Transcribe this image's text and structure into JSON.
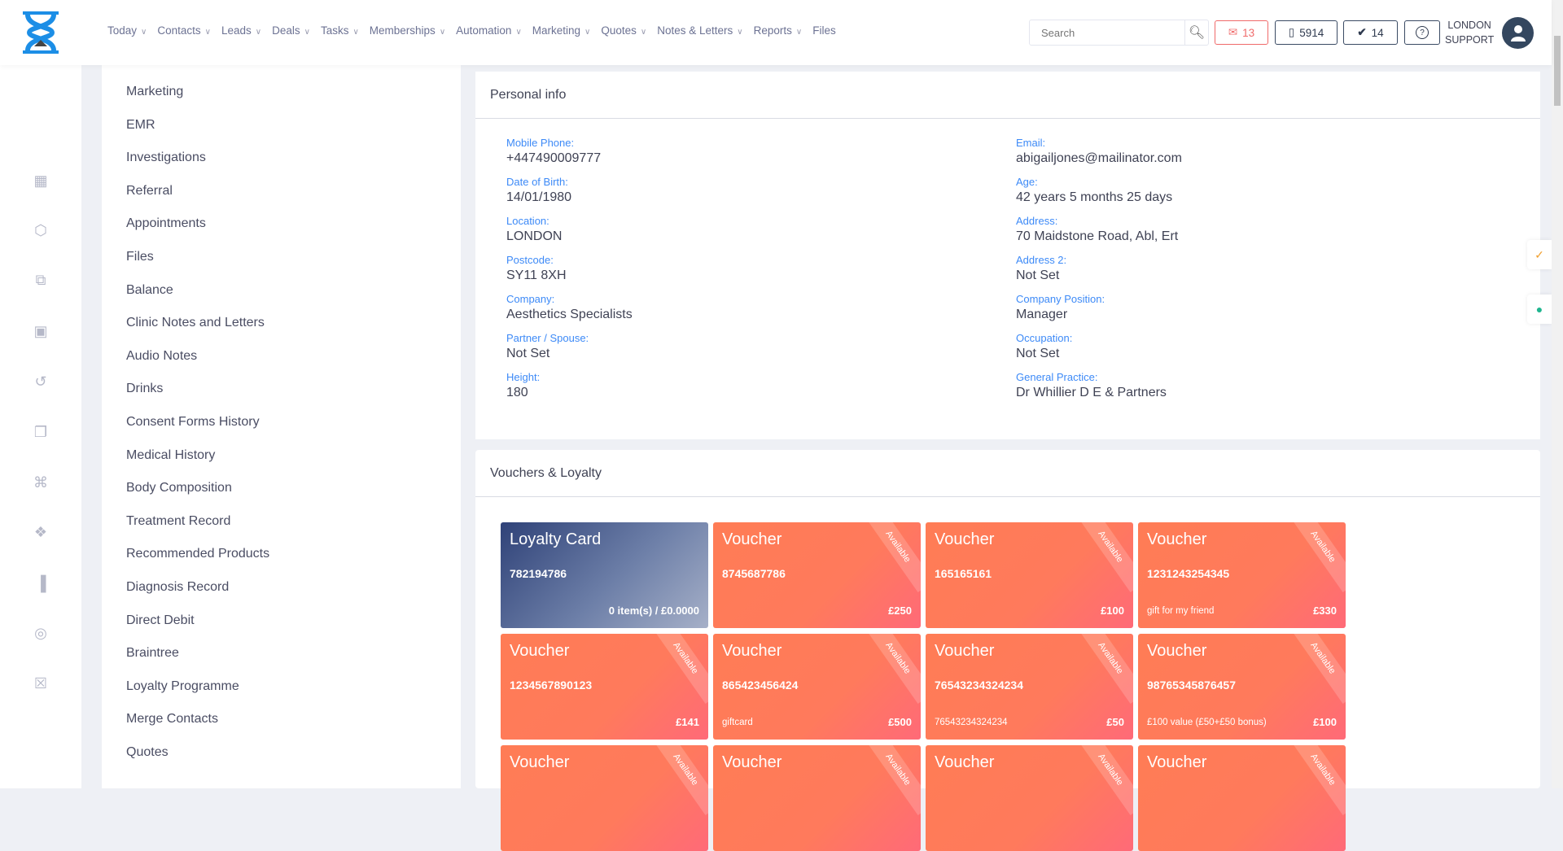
{
  "nav": {
    "items": [
      {
        "label": "Today",
        "dropdown": true
      },
      {
        "label": "Contacts",
        "dropdown": true
      },
      {
        "label": "Leads",
        "dropdown": true
      },
      {
        "label": "Deals",
        "dropdown": true
      },
      {
        "label": "Tasks",
        "dropdown": true
      },
      {
        "label": "Memberships",
        "dropdown": true
      },
      {
        "label": "Automation",
        "dropdown": true
      },
      {
        "label": "Marketing",
        "dropdown": true
      },
      {
        "label": "Quotes",
        "dropdown": true
      },
      {
        "label": "Notes & Letters",
        "dropdown": true
      },
      {
        "label": "Reports",
        "dropdown": true
      },
      {
        "label": "Files",
        "dropdown": false
      }
    ],
    "search_placeholder": "Search",
    "mail_count": "13",
    "sms_count": "5914",
    "tasks_count": "14",
    "user_line1": "LONDON",
    "user_line2": "SUPPORT",
    "mail_color": "#f06a6a"
  },
  "rail": {
    "icons": [
      "calendar-icon",
      "box-icon",
      "copy-icon",
      "camera-icon",
      "history-icon",
      "gift-icon",
      "cart-icon",
      "tag-icon",
      "report-icon",
      "account-icon",
      "lock-icon"
    ]
  },
  "menu": {
    "items": [
      "Marketing",
      "EMR",
      "Investigations",
      "Referral",
      "Appointments",
      "Files",
      "Balance",
      "Clinic Notes and Letters",
      "Audio Notes",
      "Drinks",
      "Consent Forms History",
      "Medical History",
      "Body Composition",
      "Treatment Record",
      "Recommended Products",
      "Diagnosis Record",
      "Direct Debit",
      "Braintree",
      "Loyalty Programme",
      "Merge Contacts",
      "Quotes"
    ]
  },
  "personal": {
    "title": "Personal info",
    "fields": [
      {
        "label": "Mobile Phone:",
        "value": "+447490009777"
      },
      {
        "label": "Email:",
        "value": "abigailjones@mailinator.com"
      },
      {
        "label": "Date of Birth:",
        "value": "14/01/1980"
      },
      {
        "label": "Age:",
        "value": "42 years 5 months 25 days"
      },
      {
        "label": "Location:",
        "value": "LONDON"
      },
      {
        "label": "Address:",
        "value": "70 Maidstone Road, Abl, Ert"
      },
      {
        "label": "Postcode:",
        "value": "SY11 8XH"
      },
      {
        "label": "Address 2:",
        "value": "Not Set"
      },
      {
        "label": "Company:",
        "value": "Aesthetics Specialists"
      },
      {
        "label": "Company Position:",
        "value": "Manager"
      },
      {
        "label": "Partner / Spouse:",
        "value": "Not Set"
      },
      {
        "label": "Occupation:",
        "value": "Not Set"
      },
      {
        "label": "Height:",
        "value": "180"
      },
      {
        "label": "General Practice:",
        "value": "Dr Whillier D E & Partners"
      }
    ]
  },
  "vouchers": {
    "title": "Vouchers & Loyalty",
    "cards": [
      {
        "type": "Loyalty Card",
        "number": "782194786",
        "desc": "",
        "amount": "0 item(s) / £0.0000",
        "status": ""
      },
      {
        "type": "Voucher",
        "number": "8745687786",
        "desc": "",
        "amount": "£250",
        "status": "Available"
      },
      {
        "type": "Voucher",
        "number": "165165161",
        "desc": "",
        "amount": "£100",
        "status": "Available"
      },
      {
        "type": "Voucher",
        "number": "1231243254345",
        "desc": "gift for my friend",
        "amount": "£330",
        "status": "Available"
      },
      {
        "type": "Voucher",
        "number": "1234567890123",
        "desc": "",
        "amount": "£141",
        "status": "Available"
      },
      {
        "type": "Voucher",
        "number": "865423456424",
        "desc": "giftcard",
        "amount": "£500",
        "status": "Available"
      },
      {
        "type": "Voucher",
        "number": "76543234324234",
        "desc": "76543234324234",
        "amount": "£50",
        "status": "Available"
      },
      {
        "type": "Voucher",
        "number": "98765345876457",
        "desc": "£100 value (£50+£50 bonus)",
        "amount": "£100",
        "status": "Available"
      },
      {
        "type": "Voucher",
        "number": "",
        "desc": "",
        "amount": "",
        "status": "Available"
      },
      {
        "type": "Voucher",
        "number": "",
        "desc": "",
        "amount": "",
        "status": "Available"
      },
      {
        "type": "Voucher",
        "number": "",
        "desc": "",
        "amount": "",
        "status": "Available"
      },
      {
        "type": "Voucher",
        "number": "",
        "desc": "",
        "amount": "",
        "status": "Available"
      }
    ]
  }
}
